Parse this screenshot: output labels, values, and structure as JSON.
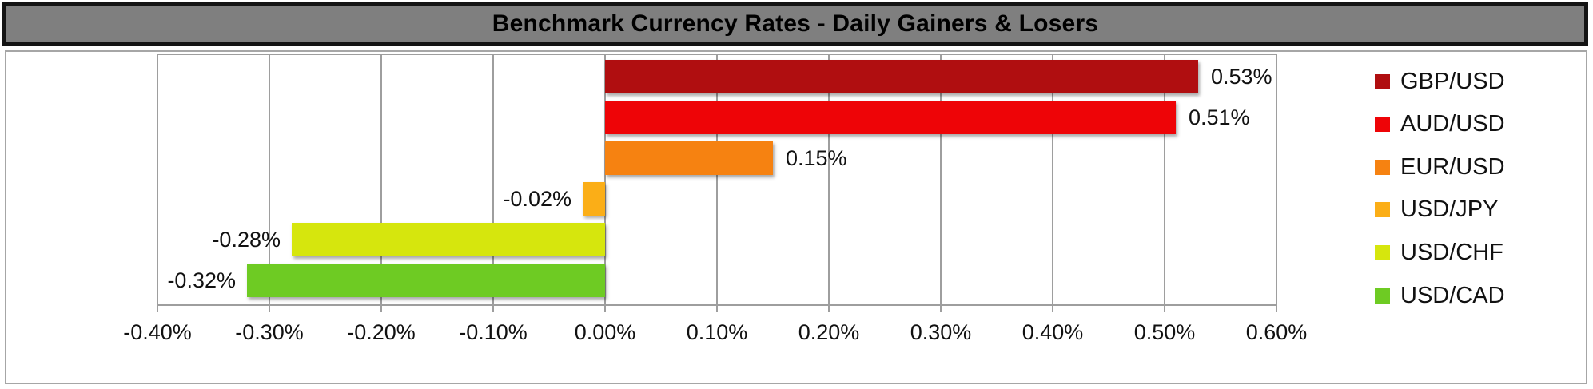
{
  "colors": {
    "title_bg": "#7f7f7f",
    "title_border": "#141414",
    "title_text": "#000000",
    "chart_border": "#a6a6a6",
    "gridline": "#9e9e9e",
    "label_text": "#111111",
    "background": "#ffffff"
  },
  "chart_data": {
    "type": "bar",
    "orientation": "horizontal",
    "title": "Benchmark Currency Rates - Daily Gainers & Losers",
    "categories": [
      "GBP/USD",
      "AUD/USD",
      "EUR/USD",
      "USD/JPY",
      "USD/CHF",
      "USD/CAD"
    ],
    "values": [
      0.53,
      0.51,
      0.15,
      -0.02,
      -0.28,
      -0.32
    ],
    "value_labels": [
      "0.53%",
      "0.51%",
      "0.15%",
      "-0.02%",
      "-0.28%",
      "-0.32%"
    ],
    "bar_colors": [
      "#b00e10",
      "#ee0407",
      "#f68211",
      "#fbae17",
      "#d6e60d",
      "#6ecb23"
    ],
    "xlim": [
      -0.4,
      0.6
    ],
    "x_ticks": [
      -0.4,
      -0.3,
      -0.2,
      -0.1,
      0.0,
      0.1,
      0.2,
      0.3,
      0.4,
      0.5,
      0.6
    ],
    "x_tick_labels": [
      "-0.40%",
      "-0.30%",
      "-0.20%",
      "-0.10%",
      "0.00%",
      "0.10%",
      "0.20%",
      "0.30%",
      "0.40%",
      "0.50%",
      "0.60%"
    ],
    "grid": true,
    "legend_position": "right"
  }
}
